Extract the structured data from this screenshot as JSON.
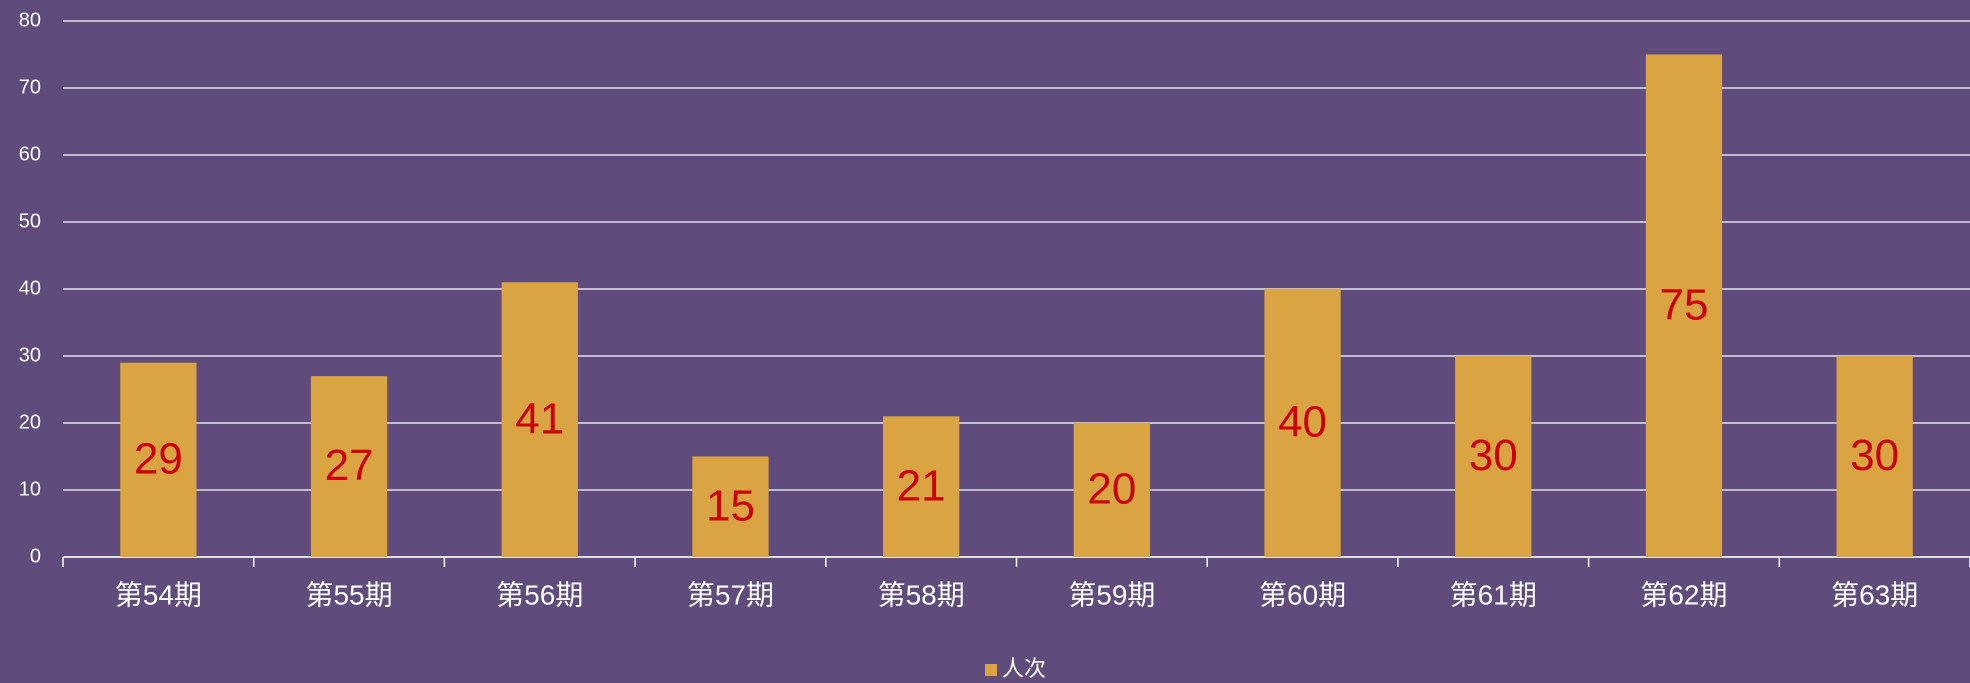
{
  "chart_data": {
    "type": "bar",
    "categories": [
      "第54期",
      "第55期",
      "第56期",
      "第57期",
      "第58期",
      "第59期",
      "第60期",
      "第61期",
      "第62期",
      "第63期"
    ],
    "series": [
      {
        "name": "人次",
        "color": "#d9a441",
        "values": [
          29,
          27,
          41,
          15,
          21,
          20,
          40,
          30,
          75,
          30
        ]
      }
    ],
    "ylim": [
      0,
      80
    ],
    "yticks": [
      0,
      10,
      20,
      30,
      40,
      50,
      60,
      70,
      80
    ],
    "grid": true,
    "legend": "bottom"
  }
}
